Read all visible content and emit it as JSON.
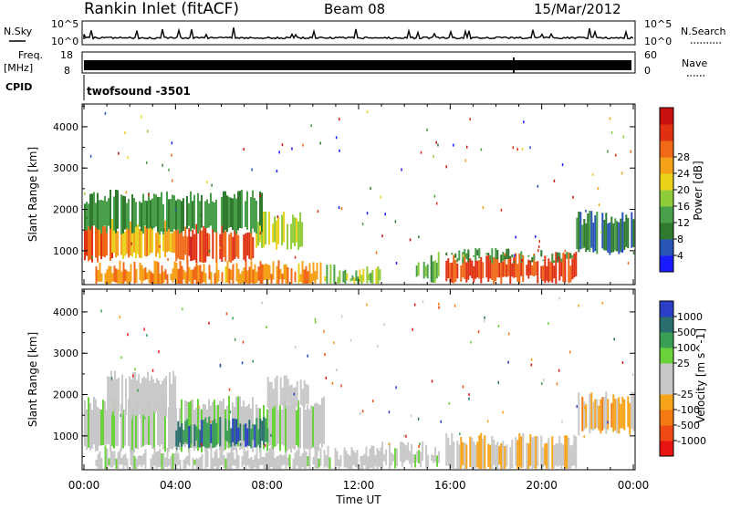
{
  "header": {
    "station": "Rankin Inlet (fitACF)",
    "beam": "Beam 08",
    "date": "15/Mar/2012"
  },
  "strips": {
    "nsky_label": "N.Sky",
    "nsky_ticks": [
      "10^5",
      "10^0"
    ],
    "nsearch_label": "N.Search",
    "nsearch_ticks": [
      "10^5",
      "10^0"
    ],
    "freq_label": "Freq.",
    "freq_unit": "[MHz]",
    "freq_ticks": [
      "18",
      "8"
    ],
    "nave_label": "Nave",
    "nave_ticks": [
      "60",
      "0"
    ],
    "cpid_label": "CPID",
    "cpid_value": "twofsound -3501"
  },
  "axes": {
    "ylabel": "Slant Range [km]",
    "yticks": [
      "1000",
      "2000",
      "3000",
      "4000"
    ],
    "xticks": [
      "00:00",
      "04:00",
      "08:00",
      "12:00",
      "16:00",
      "20:00",
      "00:00"
    ],
    "xlabel": "Time UT"
  },
  "colors": {
    "power_scale": [
      "#1a1aff",
      "#2a55b8",
      "#2f7a2f",
      "#4aa04a",
      "#8fcc3a",
      "#e8d21a",
      "#f5a21a",
      "#f06818",
      "#e03012",
      "#c81010"
    ],
    "velocity_scale": [
      "#e81414",
      "#f04a14",
      "#f57a14",
      "#f8a41a",
      "#c8c8c8",
      "#c8c8c8",
      "#6ad23a",
      "#3a9e55",
      "#2a6e6e",
      "#2a3ec8"
    ]
  },
  "chart_data": [
    {
      "type": "heatmap",
      "name": "power_panel",
      "xlabel": "Time UT",
      "ylabel": "Slant Range [km]",
      "xlim": [
        0,
        24
      ],
      "ylim": [
        180,
        4550
      ],
      "colorbar": {
        "label": "Power [dB]",
        "ticks": [
          "4",
          "8",
          "12",
          "16",
          "20",
          "24",
          "28"
        ],
        "range": [
          0,
          32
        ]
      },
      "regions": [
        {
          "t0": 0.0,
          "t1": 1.2,
          "r0": 800,
          "r1": 1700,
          "level": 24
        },
        {
          "t0": 1.2,
          "t1": 4.0,
          "r0": 900,
          "r1": 1600,
          "level": 20
        },
        {
          "t0": 4.0,
          "t1": 7.5,
          "r0": 800,
          "r1": 1500,
          "level": 26
        },
        {
          "t0": 7.5,
          "t1": 9.5,
          "r0": 1100,
          "r1": 1800,
          "level": 16
        },
        {
          "t0": 0.0,
          "t1": 8.0,
          "r0": 1500,
          "r1": 2300,
          "level": 10
        },
        {
          "t0": 0.5,
          "t1": 10.5,
          "r0": 200,
          "r1": 600,
          "level": 22
        },
        {
          "t0": 10.5,
          "t1": 13.0,
          "r0": 200,
          "r1": 500,
          "level": 14
        },
        {
          "t0": 14.5,
          "t1": 15.5,
          "r0": 300,
          "r1": 800,
          "level": 12
        },
        {
          "t0": 15.8,
          "t1": 21.5,
          "r0": 300,
          "r1": 800,
          "level": 26
        },
        {
          "t0": 15.8,
          "t1": 21.5,
          "r0": 800,
          "r1": 900,
          "level": 10
        },
        {
          "t0": 21.5,
          "t1": 24.0,
          "r0": 1000,
          "r1": 1800,
          "level": 8
        }
      ]
    },
    {
      "type": "heatmap",
      "name": "velocity_panel",
      "xlabel": "Time UT",
      "ylabel": "Slant Range [km]",
      "xlim": [
        0,
        24
      ],
      "ylim": [
        180,
        4550
      ],
      "colorbar": {
        "label": "Velocity [m s^-1]",
        "ticks": [
          "-1000",
          "-500",
          "-100",
          "-25",
          "25",
          "100",
          "500",
          "1000"
        ],
        "range": [
          -1200,
          1200
        ]
      },
      "regions": [
        {
          "t0": 0.0,
          "t1": 10.5,
          "r0": 700,
          "r1": 1800,
          "level": 100
        },
        {
          "t0": 1.0,
          "t1": 4.0,
          "r0": 1500,
          "r1": 2400,
          "level": 0
        },
        {
          "t0": 4.0,
          "t1": 8.0,
          "r0": 800,
          "r1": 1300,
          "level": 800
        },
        {
          "t0": 8.0,
          "t1": 9.8,
          "r0": 1700,
          "r1": 2300,
          "level": 0
        },
        {
          "t0": 0.5,
          "t1": 13.0,
          "r0": 200,
          "r1": 600,
          "level": 60
        },
        {
          "t0": 13.0,
          "t1": 15.5,
          "r0": 300,
          "r1": 700,
          "level": 80
        },
        {
          "t0": 15.8,
          "t1": 21.5,
          "r0": 200,
          "r1": 900,
          "level": -200
        },
        {
          "t0": 21.5,
          "t1": 24.0,
          "r0": 1100,
          "r1": 1900,
          "level": -300
        }
      ]
    }
  ]
}
